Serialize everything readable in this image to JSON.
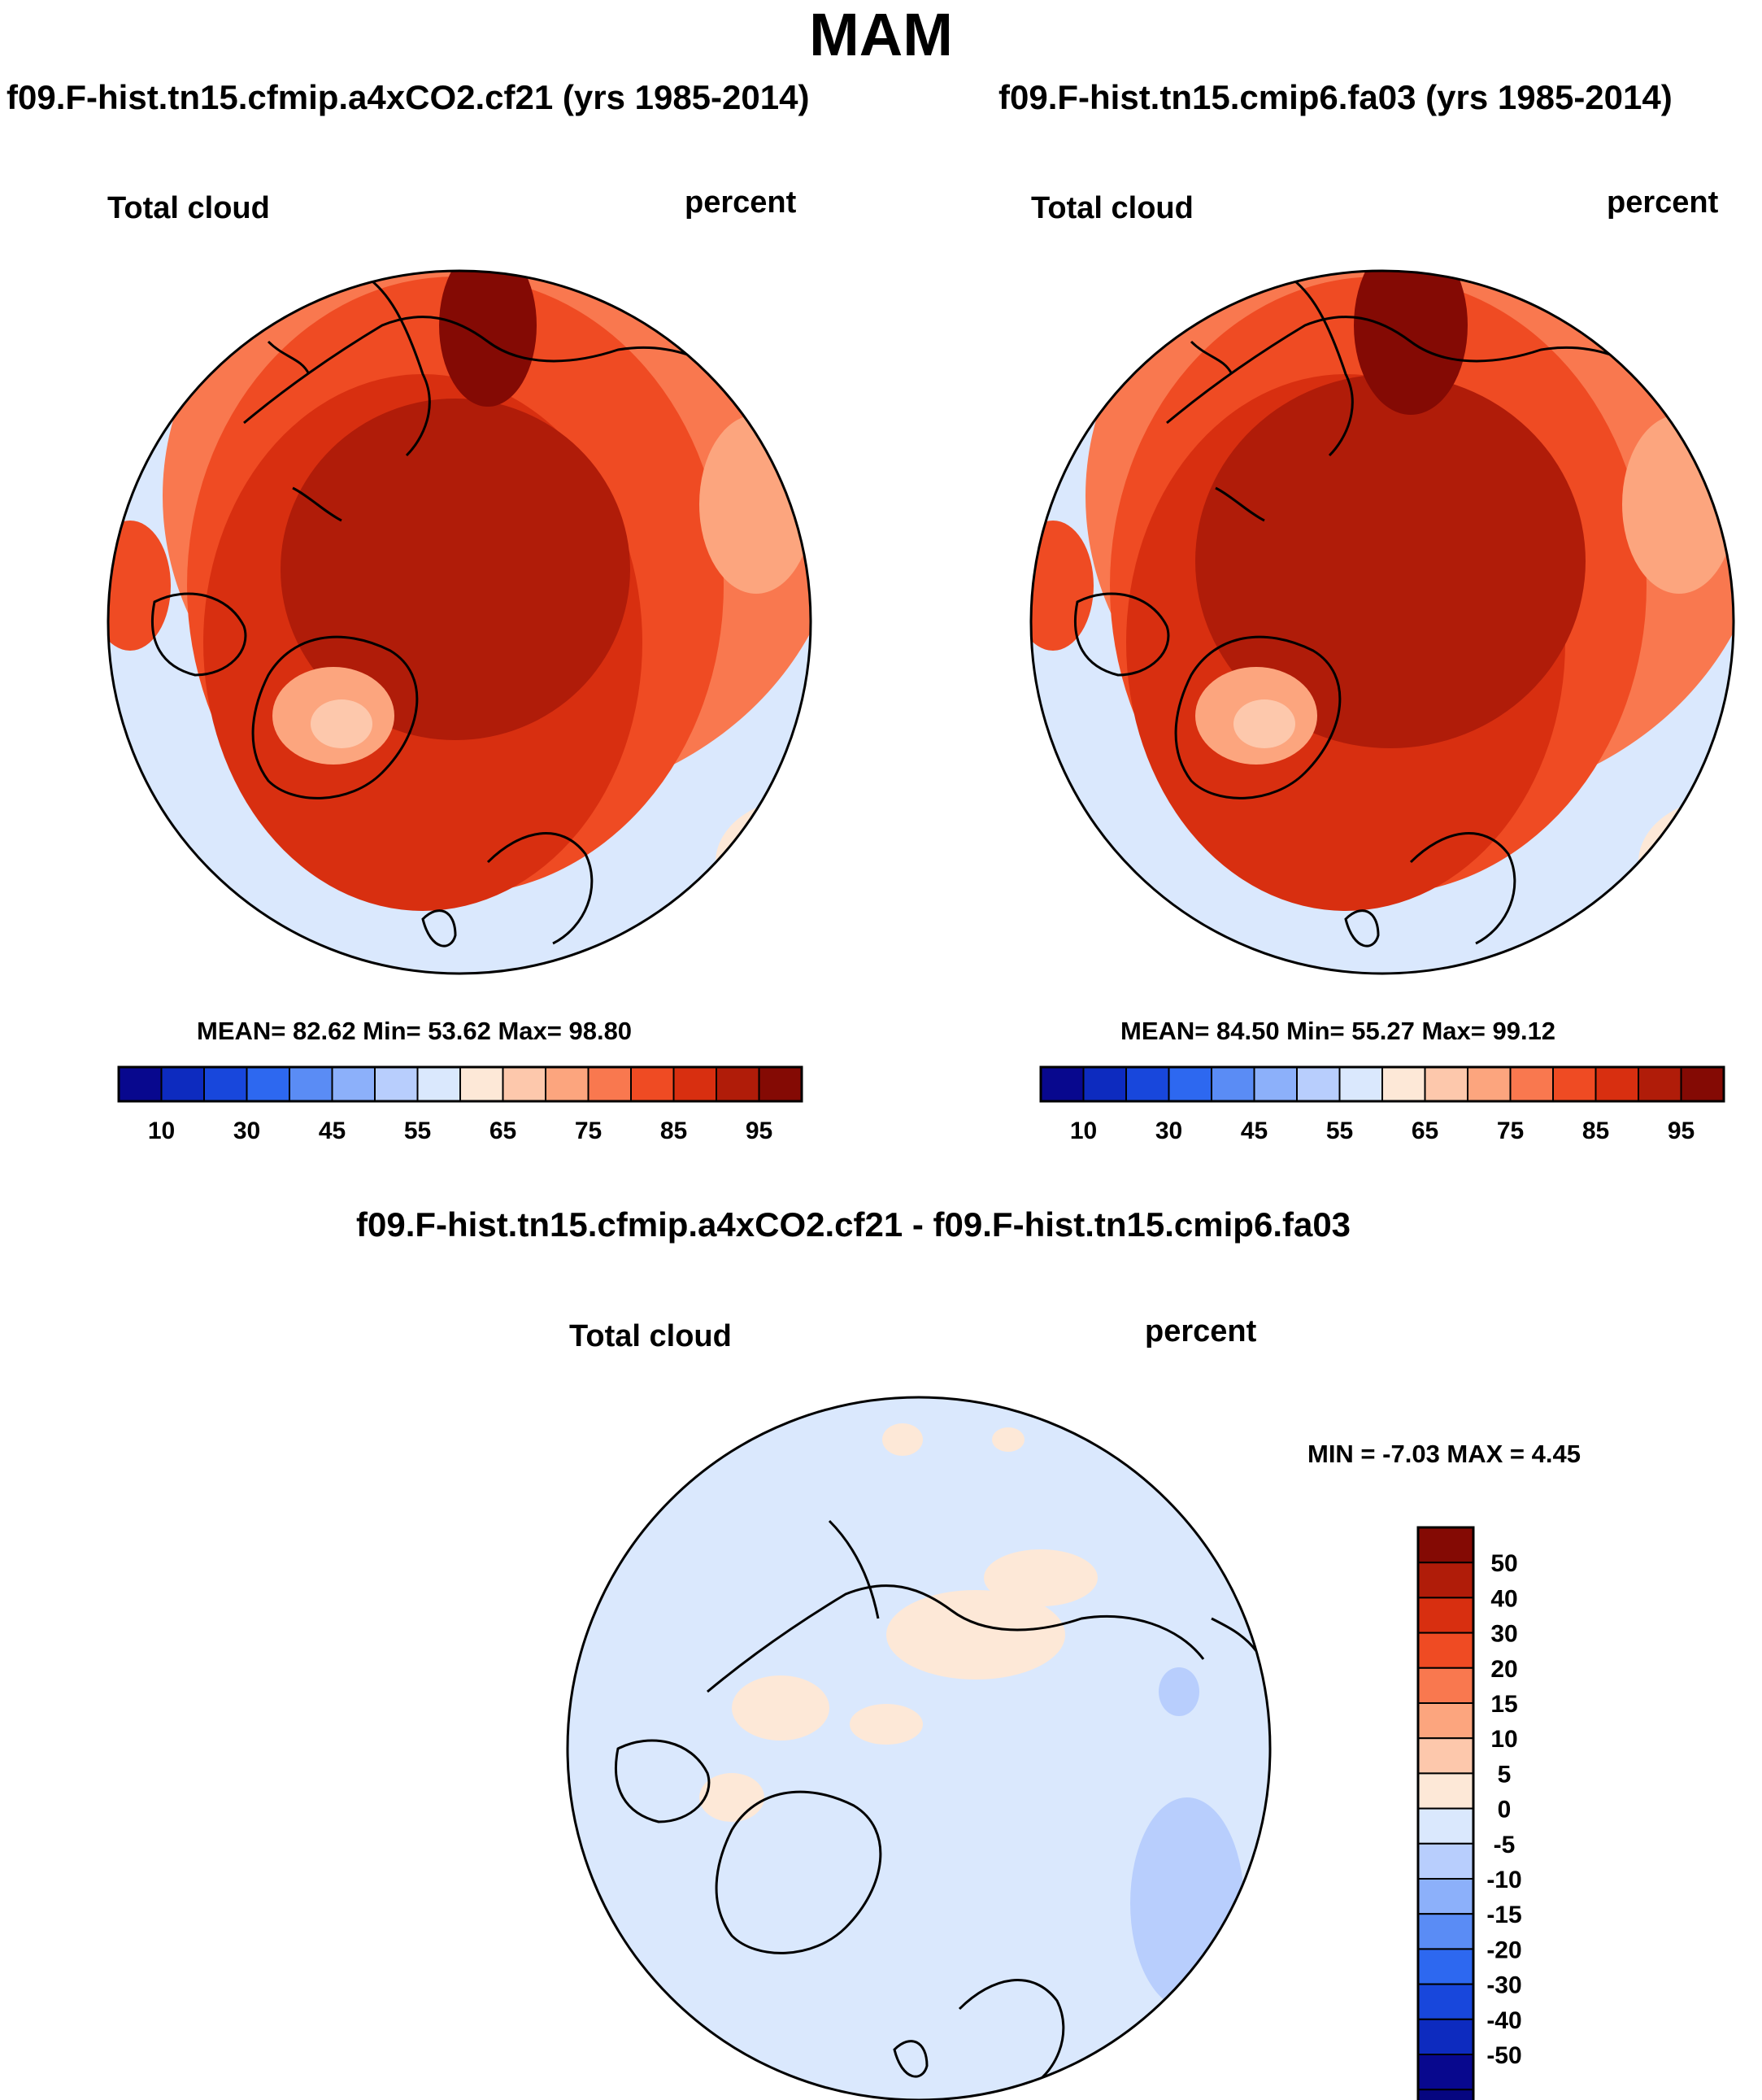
{
  "page": {
    "title": "MAM"
  },
  "panels": [
    {
      "title": "f09.F-hist.tn15.cfmip.a4xCO2.cf21 (yrs 1985-2014)",
      "left_label": "Total cloud",
      "right_label": "percent",
      "stats": "MEAN=  82.62  Min=  53.62  Max=  98.80"
    },
    {
      "title": "f09.F-hist.tn15.cmip6.fa03 (yrs 1985-2014)",
      "left_label": "Total cloud",
      "right_label": "percent",
      "stats": "MEAN=  84.50  Min=  55.27  Max=  99.12"
    }
  ],
  "diff": {
    "title": "f09.F-hist.tn15.cfmip.a4xCO2.cf21 - f09.F-hist.tn15.cmip6.fa03",
    "left_label": "Total cloud",
    "right_label": "percent",
    "minmax": "MIN =  -7.03 MAX =   4.45"
  },
  "colorbar_main": {
    "colors": [
      "#08088e",
      "#0d2bbf",
      "#1847dc",
      "#2d68f0",
      "#5a8cf5",
      "#8cb0fa",
      "#b8cefd",
      "#dae8fd",
      "#fde8d7",
      "#fdc8ac",
      "#fca57e",
      "#f9784f",
      "#ef4b23",
      "#d82f10",
      "#b01c09",
      "#840a04"
    ],
    "tick_labels": [
      "10",
      "30",
      "45",
      "55",
      "65",
      "75",
      "85",
      "95"
    ]
  },
  "colorbar_diff": {
    "colors": [
      "#840a04",
      "#b01c09",
      "#d82f10",
      "#ef4b23",
      "#f9784f",
      "#fca57e",
      "#fdc8ac",
      "#fde8d7",
      "#dae8fd",
      "#b8cefd",
      "#8cb0fa",
      "#5a8cf5",
      "#2d68f0",
      "#1847dc",
      "#0d2bbf",
      "#08088e",
      "#060680"
    ],
    "tick_labels": [
      "50",
      "40",
      "30",
      "20",
      "15",
      "10",
      "5",
      "0",
      "-5",
      "-10",
      "-15",
      "-20",
      "-30",
      "-40",
      "-50"
    ]
  },
  "map_colors": {
    "coast": "#000000",
    "main": [
      "#840a04",
      "#b01c09",
      "#d82f10",
      "#ef4b23",
      "#f9784f",
      "#fca57e",
      "#fdc8ac",
      "#fde8d7",
      "#dae8fd"
    ],
    "diff_bg": "#dae8fd",
    "diff_pos": "#fde8d7",
    "diff_neg": "#b8cefd"
  }
}
